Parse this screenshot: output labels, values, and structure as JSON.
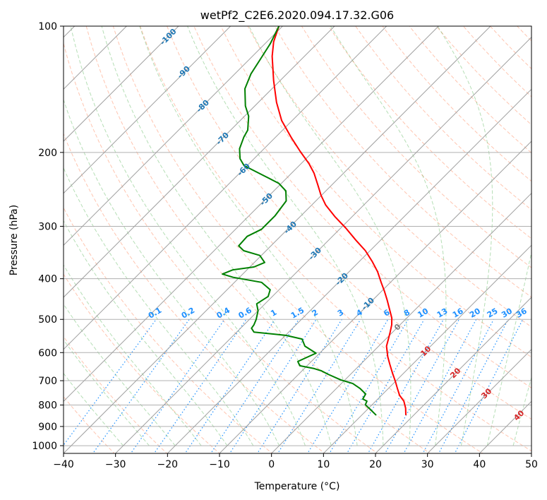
{
  "chart_data": {
    "type": "line",
    "subtype": "skew-T log-P diagram",
    "title": "wetPf2_C2E6.2020.094.17.32.G06",
    "xlabel": "Temperature (°C)",
    "ylabel": "Pressure (hPa)",
    "xlim": [
      -40,
      50
    ],
    "ylim": [
      1043,
      100
    ],
    "x_ticks": [
      "−40",
      "−30",
      "−20",
      "−10",
      "0",
      "10",
      "20",
      "30",
      "40",
      "50"
    ],
    "x_tick_values": [
      -40,
      -30,
      -20,
      -10,
      0,
      10,
      20,
      30,
      40,
      50
    ],
    "y_ticks": [
      "100",
      "200",
      "300",
      "400",
      "500",
      "600",
      "700",
      "800",
      "900",
      "1000"
    ],
    "y_tick_values": [
      100,
      200,
      300,
      400,
      500,
      600,
      700,
      800,
      900,
      1000
    ],
    "grid": true,
    "series": [
      {
        "name": "Temperature",
        "color": "#ff0000",
        "pressure": [
          846,
          814,
          783,
          759,
          730,
          703,
          671,
          638,
          614,
          579,
          557,
          536,
          515,
          496,
          473,
          450,
          428,
          408,
          385,
          364,
          343,
          324,
          303,
          285,
          267,
          253,
          239,
          224,
          213,
          199,
          184,
          168,
          152,
          135,
          118,
          109,
          100
        ],
        "temperature": [
          18.5,
          17.1,
          15.4,
          13.5,
          11.7,
          10.0,
          7.8,
          5.5,
          3.8,
          1.5,
          0.5,
          -0.5,
          -1.6,
          -2.9,
          -5.0,
          -7.2,
          -9.5,
          -11.8,
          -14.5,
          -17.5,
          -20.9,
          -24.7,
          -29.0,
          -33.2,
          -37.3,
          -40.1,
          -42.7,
          -45.7,
          -48.4,
          -52.5,
          -57.0,
          -62.0,
          -66.5,
          -71.2,
          -76.2,
          -78.7,
          -80.7
        ]
      },
      {
        "name": "Dewpoint",
        "color": "#008000",
        "pressure": [
          846,
          820,
          799,
          783,
          774,
          753,
          730,
          711,
          697,
          676,
          663,
          655,
          645,
          630,
          621,
          602,
          579,
          557,
          546,
          536,
          525,
          515,
          500,
          477,
          459,
          441,
          425,
          408,
          397,
          390,
          381,
          375,
          366,
          352,
          343,
          334,
          317,
          305,
          283,
          261,
          247,
          237,
          228,
          215,
          207,
          196,
          184,
          177,
          164,
          155,
          141,
          130,
          120,
          110,
          100
        ],
        "temperature": [
          12.8,
          10.6,
          8.7,
          8.3,
          7.1,
          6.7,
          4.5,
          2.2,
          -0.8,
          -4.3,
          -6.3,
          -8.1,
          -11.4,
          -12.6,
          -12.0,
          -10.7,
          -14.2,
          -16.1,
          -19.9,
          -26.7,
          -27.9,
          -28.1,
          -28.7,
          -30.0,
          -31.6,
          -30.8,
          -31.7,
          -34.8,
          -41.2,
          -43.9,
          -42.7,
          -39.2,
          -38.0,
          -40.3,
          -44.3,
          -46.2,
          -46.4,
          -45.0,
          -45.0,
          -45.7,
          -47.7,
          -50.5,
          -54.5,
          -60.6,
          -62.7,
          -64.7,
          -66.1,
          -66.7,
          -69.2,
          -71.8,
          -75.2,
          -76.9,
          -77.9,
          -79.0,
          -80.7
        ]
      }
    ],
    "mixing_ratio_labels": [
      "0.1",
      "0.2",
      "0.4",
      "0.6",
      "1",
      "1.5",
      "2",
      "3",
      "4",
      "6",
      "8",
      "10",
      "13",
      "16",
      "20",
      "25",
      "30",
      "36"
    ],
    "mixing_ratio_values": [
      0.1,
      0.2,
      0.4,
      0.6,
      1,
      1.5,
      2,
      3,
      4,
      6,
      8,
      10,
      13,
      16,
      20,
      25,
      30,
      36
    ],
    "isotherm_labels": [
      "-100",
      "-90",
      "-80",
      "-70",
      "-60",
      "-50",
      "-40",
      "-30",
      "-20",
      "-10",
      "0",
      "10",
      "20",
      "30",
      "40"
    ],
    "colors": {
      "isotherm": "#a0a0a0",
      "dry_adiabat": "#ff7f50",
      "moist_adiabat": "#2ca02c",
      "mixing_ratio": "#1e90ff",
      "cold_label": "#1f77b4",
      "zero_label": "#7f7f7f",
      "warm_label": "#d62728"
    }
  }
}
